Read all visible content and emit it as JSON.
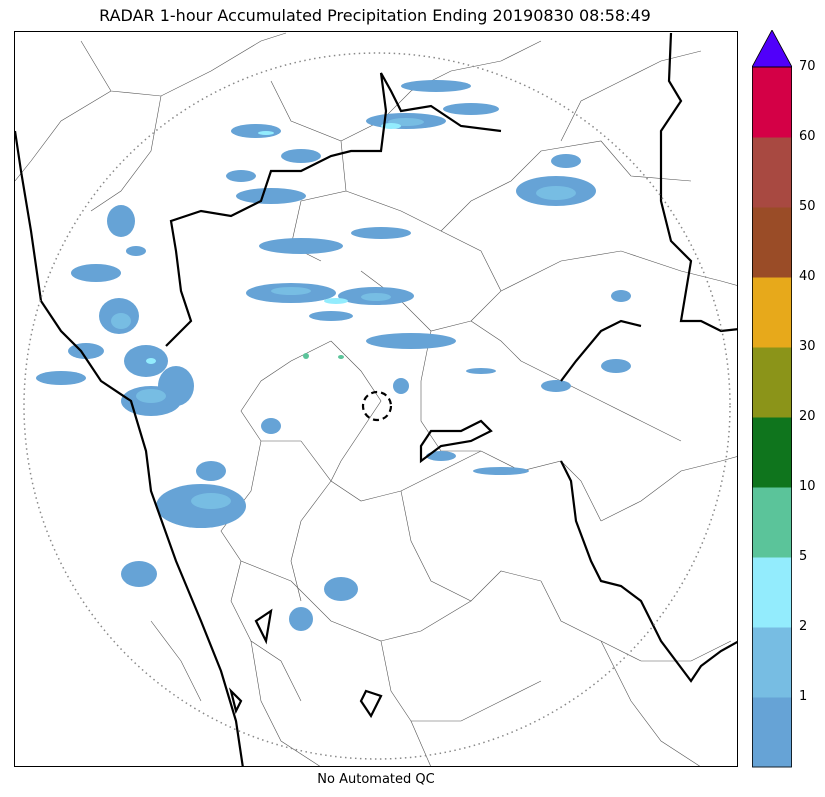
{
  "title": "RADAR 1-hour Accumulated Precipitation Ending 20190830 08:58:49",
  "footer": "No Automated QC",
  "colorbar": {
    "ticks": [
      "1",
      "2",
      "5",
      "10",
      "20",
      "30",
      "40",
      "50",
      "60",
      "70"
    ],
    "bins": [
      {
        "color": "#66a3d6"
      },
      {
        "color": "#77bde3"
      },
      {
        "color": "#93ecfd"
      },
      {
        "color": "#5bc49a"
      },
      {
        "color": "#0f751d"
      },
      {
        "color": "#8b9419"
      },
      {
        "color": "#e7a91b"
      },
      {
        "color": "#9a4c27"
      },
      {
        "color": "#a84941"
      },
      {
        "color": "#d40046"
      }
    ],
    "extend_color": "#5000fa"
  },
  "map": {
    "range_ring": "dotted",
    "radar_marker": "dashed-circle"
  }
}
